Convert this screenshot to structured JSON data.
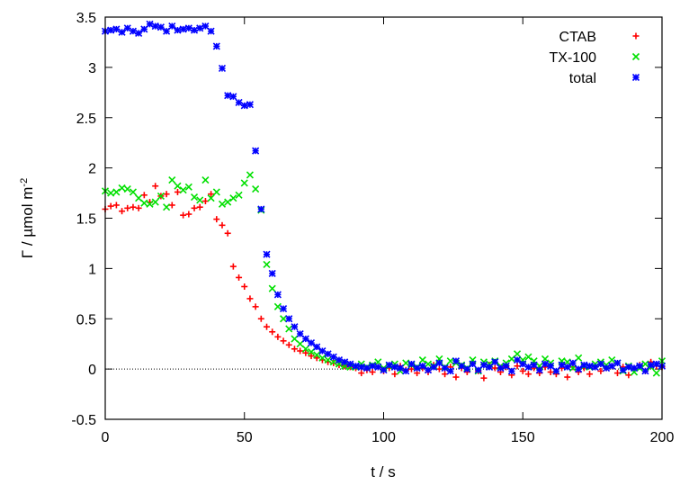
{
  "chart_data": {
    "type": "scatter",
    "xlabel": "t / s",
    "ylabel_parts": [
      "Γ / µmol m",
      "-2"
    ],
    "xlim": [
      0,
      200
    ],
    "ylim": [
      -0.5,
      3.5
    ],
    "xticks": [
      0,
      50,
      100,
      150,
      200
    ],
    "yticks": [
      -0.5,
      0,
      0.5,
      1,
      1.5,
      2,
      2.5,
      3,
      3.5
    ],
    "xtick_labels": [
      "0",
      "50",
      "100",
      "150",
      "200"
    ],
    "ytick_labels": [
      "-0.5",
      "0",
      "0.5",
      "1",
      "1.5",
      "2",
      "2.5",
      "3",
      "3.5"
    ],
    "zero_line": true,
    "grid": false,
    "legend_position": "top-right",
    "series": [
      {
        "name": "CTAB",
        "color": "#ff0000",
        "marker": "plus",
        "x": [
          0,
          2,
          4,
          6,
          8,
          10,
          12,
          14,
          16,
          18,
          20,
          22,
          24,
          26,
          28,
          30,
          32,
          34,
          36,
          38,
          40,
          42,
          44,
          46,
          48,
          50,
          52,
          54,
          56,
          58,
          60,
          62,
          64,
          66,
          68,
          70,
          72,
          74,
          76,
          78,
          80,
          82,
          84,
          86,
          88,
          90,
          92,
          94,
          96,
          98,
          100,
          102,
          104,
          106,
          108,
          110,
          112,
          114,
          116,
          118,
          120,
          122,
          124,
          126,
          128,
          130,
          132,
          134,
          136,
          138,
          140,
          142,
          144,
          146,
          148,
          150,
          152,
          154,
          156,
          158,
          160,
          162,
          164,
          166,
          168,
          170,
          172,
          174,
          176,
          178,
          180,
          182,
          184,
          186,
          188,
          190,
          192,
          194,
          196,
          198,
          200
        ],
        "y": [
          1.59,
          1.62,
          1.63,
          1.57,
          1.6,
          1.61,
          1.6,
          1.73,
          1.66,
          1.82,
          1.72,
          1.74,
          1.63,
          1.76,
          1.53,
          1.54,
          1.6,
          1.61,
          1.67,
          1.74,
          1.49,
          1.43,
          1.35,
          1.02,
          0.91,
          0.82,
          0.7,
          0.62,
          0.5,
          0.42,
          0.37,
          0.32,
          0.28,
          0.24,
          0.2,
          0.18,
          0.16,
          0.13,
          0.11,
          0.09,
          0.07,
          0.06,
          0.04,
          0.03,
          0.02,
          0.01,
          -0.04,
          -0.01,
          -0.03,
          0.02,
          -0.02,
          0.01,
          -0.05,
          0.03,
          -0.01,
          0,
          -0.04,
          0.01,
          -0.03,
          0.04,
          0,
          -0.05,
          0.02,
          -0.08,
          0.01,
          -0.03,
          0.06,
          -0.02,
          -0.09,
          0.04,
          0.01,
          -0.03,
          0.02,
          -0.06,
          0.03,
          -0.02,
          -0.05,
          0.01,
          -0.04,
          0.02,
          -0.03,
          -0.05,
          0.01,
          -0.08,
          0.02,
          -0.03,
          0.01,
          -0.05,
          0.02,
          -0.02,
          0.01,
          0.03,
          -0.04,
          0.02,
          -0.06,
          0,
          0.04,
          -0.02,
          0.07,
          0.03,
          0.02
        ]
      },
      {
        "name": "TX-100",
        "color": "#00e000",
        "marker": "cross",
        "x": [
          0,
          2,
          4,
          6,
          8,
          10,
          12,
          14,
          16,
          18,
          20,
          22,
          24,
          26,
          28,
          30,
          32,
          34,
          36,
          38,
          40,
          42,
          44,
          46,
          48,
          50,
          52,
          54,
          56,
          58,
          60,
          62,
          64,
          66,
          68,
          70,
          72,
          74,
          76,
          78,
          80,
          82,
          84,
          86,
          88,
          90,
          92,
          94,
          96,
          98,
          100,
          102,
          104,
          106,
          108,
          110,
          112,
          114,
          116,
          118,
          120,
          122,
          124,
          126,
          128,
          130,
          132,
          134,
          136,
          138,
          140,
          142,
          144,
          146,
          148,
          150,
          152,
          154,
          156,
          158,
          160,
          162,
          164,
          166,
          168,
          170,
          172,
          174,
          176,
          178,
          180,
          182,
          184,
          186,
          188,
          190,
          192,
          194,
          196,
          198,
          200
        ],
        "y": [
          1.77,
          1.75,
          1.76,
          1.8,
          1.79,
          1.76,
          1.7,
          1.65,
          1.64,
          1.66,
          1.72,
          1.61,
          1.88,
          1.82,
          1.78,
          1.81,
          1.71,
          1.68,
          1.88,
          1.7,
          1.76,
          1.64,
          1.66,
          1.7,
          1.73,
          1.85,
          1.93,
          1.79,
          1.58,
          1.04,
          0.8,
          0.62,
          0.5,
          0.4,
          0.3,
          0.25,
          0.2,
          0.17,
          0.14,
          0.11,
          0.09,
          0.07,
          0.05,
          0.03,
          0.02,
          0.02,
          0.05,
          0.02,
          0.04,
          0.07,
          0.01,
          0.03,
          0.05,
          -0.02,
          0.06,
          0.04,
          0.02,
          0.09,
          0.05,
          0.03,
          0.1,
          0.02,
          0.08,
          0.06,
          0.04,
          0.01,
          0.09,
          -0.02,
          0.07,
          0.05,
          0.08,
          0.03,
          0.06,
          0.1,
          0.15,
          0.09,
          0.12,
          0.08,
          0.03,
          0.1,
          0.06,
          -0.02,
          0.08,
          0.07,
          0.01,
          0.11,
          0.03,
          0.02,
          0.05,
          0.07,
          0.04,
          0.09,
          0.06,
          -0.02,
          0.03,
          -0.03,
          0.01,
          0.05,
          0.02,
          -0.04,
          0.08
        ]
      },
      {
        "name": "total",
        "color": "#0000ff",
        "marker": "star",
        "x": [
          0,
          2,
          4,
          6,
          8,
          10,
          12,
          14,
          16,
          18,
          20,
          22,
          24,
          26,
          28,
          30,
          32,
          34,
          36,
          38,
          40,
          42,
          44,
          46,
          48,
          50,
          52,
          54,
          56,
          58,
          60,
          62,
          64,
          66,
          68,
          70,
          72,
          74,
          76,
          78,
          80,
          82,
          84,
          86,
          88,
          90,
          92,
          94,
          96,
          98,
          100,
          102,
          104,
          106,
          108,
          110,
          112,
          114,
          116,
          118,
          120,
          122,
          124,
          126,
          128,
          130,
          132,
          134,
          136,
          138,
          140,
          142,
          144,
          146,
          148,
          150,
          152,
          154,
          156,
          158,
          160,
          162,
          164,
          166,
          168,
          170,
          172,
          174,
          176,
          178,
          180,
          182,
          184,
          186,
          188,
          190,
          192,
          194,
          196,
          198,
          200
        ],
        "y": [
          3.36,
          3.37,
          3.38,
          3.35,
          3.39,
          3.36,
          3.34,
          3.38,
          3.43,
          3.41,
          3.4,
          3.36,
          3.41,
          3.37,
          3.38,
          3.39,
          3.37,
          3.39,
          3.41,
          3.36,
          3.21,
          2.99,
          2.72,
          2.71,
          2.65,
          2.62,
          2.63,
          2.17,
          1.59,
          1.14,
          0.95,
          0.74,
          0.6,
          0.5,
          0.42,
          0.35,
          0.3,
          0.26,
          0.22,
          0.18,
          0.15,
          0.12,
          0.09,
          0.07,
          0.05,
          0.03,
          0.02,
          0.01,
          0.03,
          0.02,
          -0.01,
          0.04,
          0.02,
          0.01,
          -0.02,
          0.05,
          0.01,
          0.03,
          -0.01,
          0.02,
          0.06,
          0.01,
          -0.02,
          0.08,
          0.03,
          0,
          0.05,
          -0.01,
          0.04,
          0.02,
          0.07,
          0.01,
          0.03,
          -0.02,
          0.09,
          0.05,
          0.02,
          0.04,
          -0.01,
          0.05,
          0.03,
          -0.02,
          0.04,
          0.02,
          0.06,
          0,
          0.04,
          0.03,
          0.02,
          0.05,
          0.01,
          0.03,
          0.06,
          -0.01,
          0.02,
          0.01,
          0.03,
          -0.02,
          0.04,
          0.05,
          0.03
        ]
      }
    ]
  }
}
